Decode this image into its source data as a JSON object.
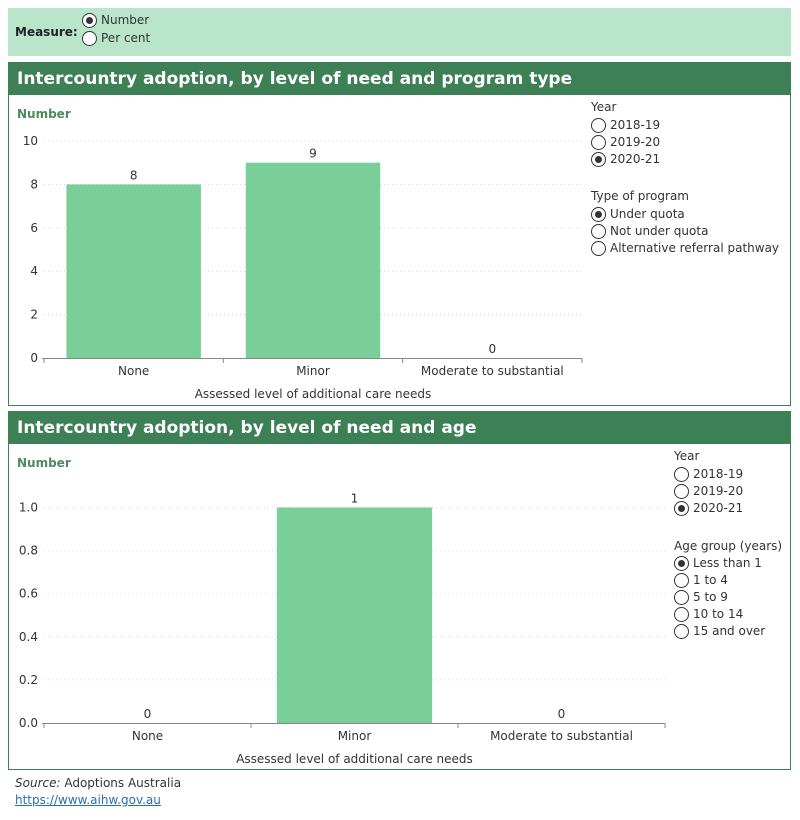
{
  "measure": {
    "label": "Measure:",
    "options": [
      "Number",
      "Per cent"
    ],
    "selected": 0
  },
  "chart1": {
    "title": "Intercountry adoption, by level of need and program type",
    "unit_label": "Number",
    "year": {
      "title": "Year",
      "options": [
        "2018-19",
        "2019-20",
        "2020-21"
      ],
      "selected": 2
    },
    "filter": {
      "title": "Type of program",
      "options": [
        "Under quota",
        "Not under quota",
        "Alternative referral pathway"
      ],
      "selected": 0
    }
  },
  "chart2": {
    "title": "Intercountry adoption, by level of need and age",
    "unit_label": "Number",
    "year": {
      "title": "Year",
      "options": [
        "2018-19",
        "2019-20",
        "2020-21"
      ],
      "selected": 2
    },
    "filter": {
      "title": "Age group (years)",
      "options": [
        "Less than 1",
        "1 to 4",
        "5 to 9",
        "10 to 14",
        "15 and over"
      ],
      "selected": 0
    }
  },
  "chart_data": [
    {
      "type": "bar",
      "title": "Intercountry adoption, by level of need and program type",
      "categories": [
        "None",
        "Minor",
        "Moderate to substantial"
      ],
      "values": [
        8,
        9,
        0
      ],
      "xlabel": "Assessed level of additional care needs",
      "ylabel": "Number",
      "ylim": [
        0,
        10
      ],
      "yticks": [
        0,
        2,
        4,
        6,
        8,
        10
      ],
      "ytick_labels": [
        "0",
        "2",
        "4",
        "6",
        "8",
        "10"
      ],
      "value_labels": [
        "8",
        "9",
        "0"
      ],
      "grid": true,
      "color": "#7acf99"
    },
    {
      "type": "bar",
      "title": "Intercountry adoption, by level of need and age",
      "categories": [
        "None",
        "Minor",
        "Moderate to substantial"
      ],
      "values": [
        0,
        1,
        0
      ],
      "xlabel": "Assessed level of additional care needs",
      "ylabel": "Number",
      "ylim": [
        0,
        1.1
      ],
      "yticks": [
        0,
        0.2,
        0.4,
        0.6,
        0.8,
        1.0
      ],
      "ytick_labels": [
        "0.0",
        "0.2",
        "0.4",
        "0.6",
        "0.8",
        "1.0"
      ],
      "value_labels": [
        "0",
        "1",
        "0"
      ],
      "grid": true,
      "color": "#7acf99"
    }
  ],
  "source": {
    "label": "Source:",
    "text": " Adoptions Australia",
    "link": "https://www.aihw.gov.au"
  }
}
